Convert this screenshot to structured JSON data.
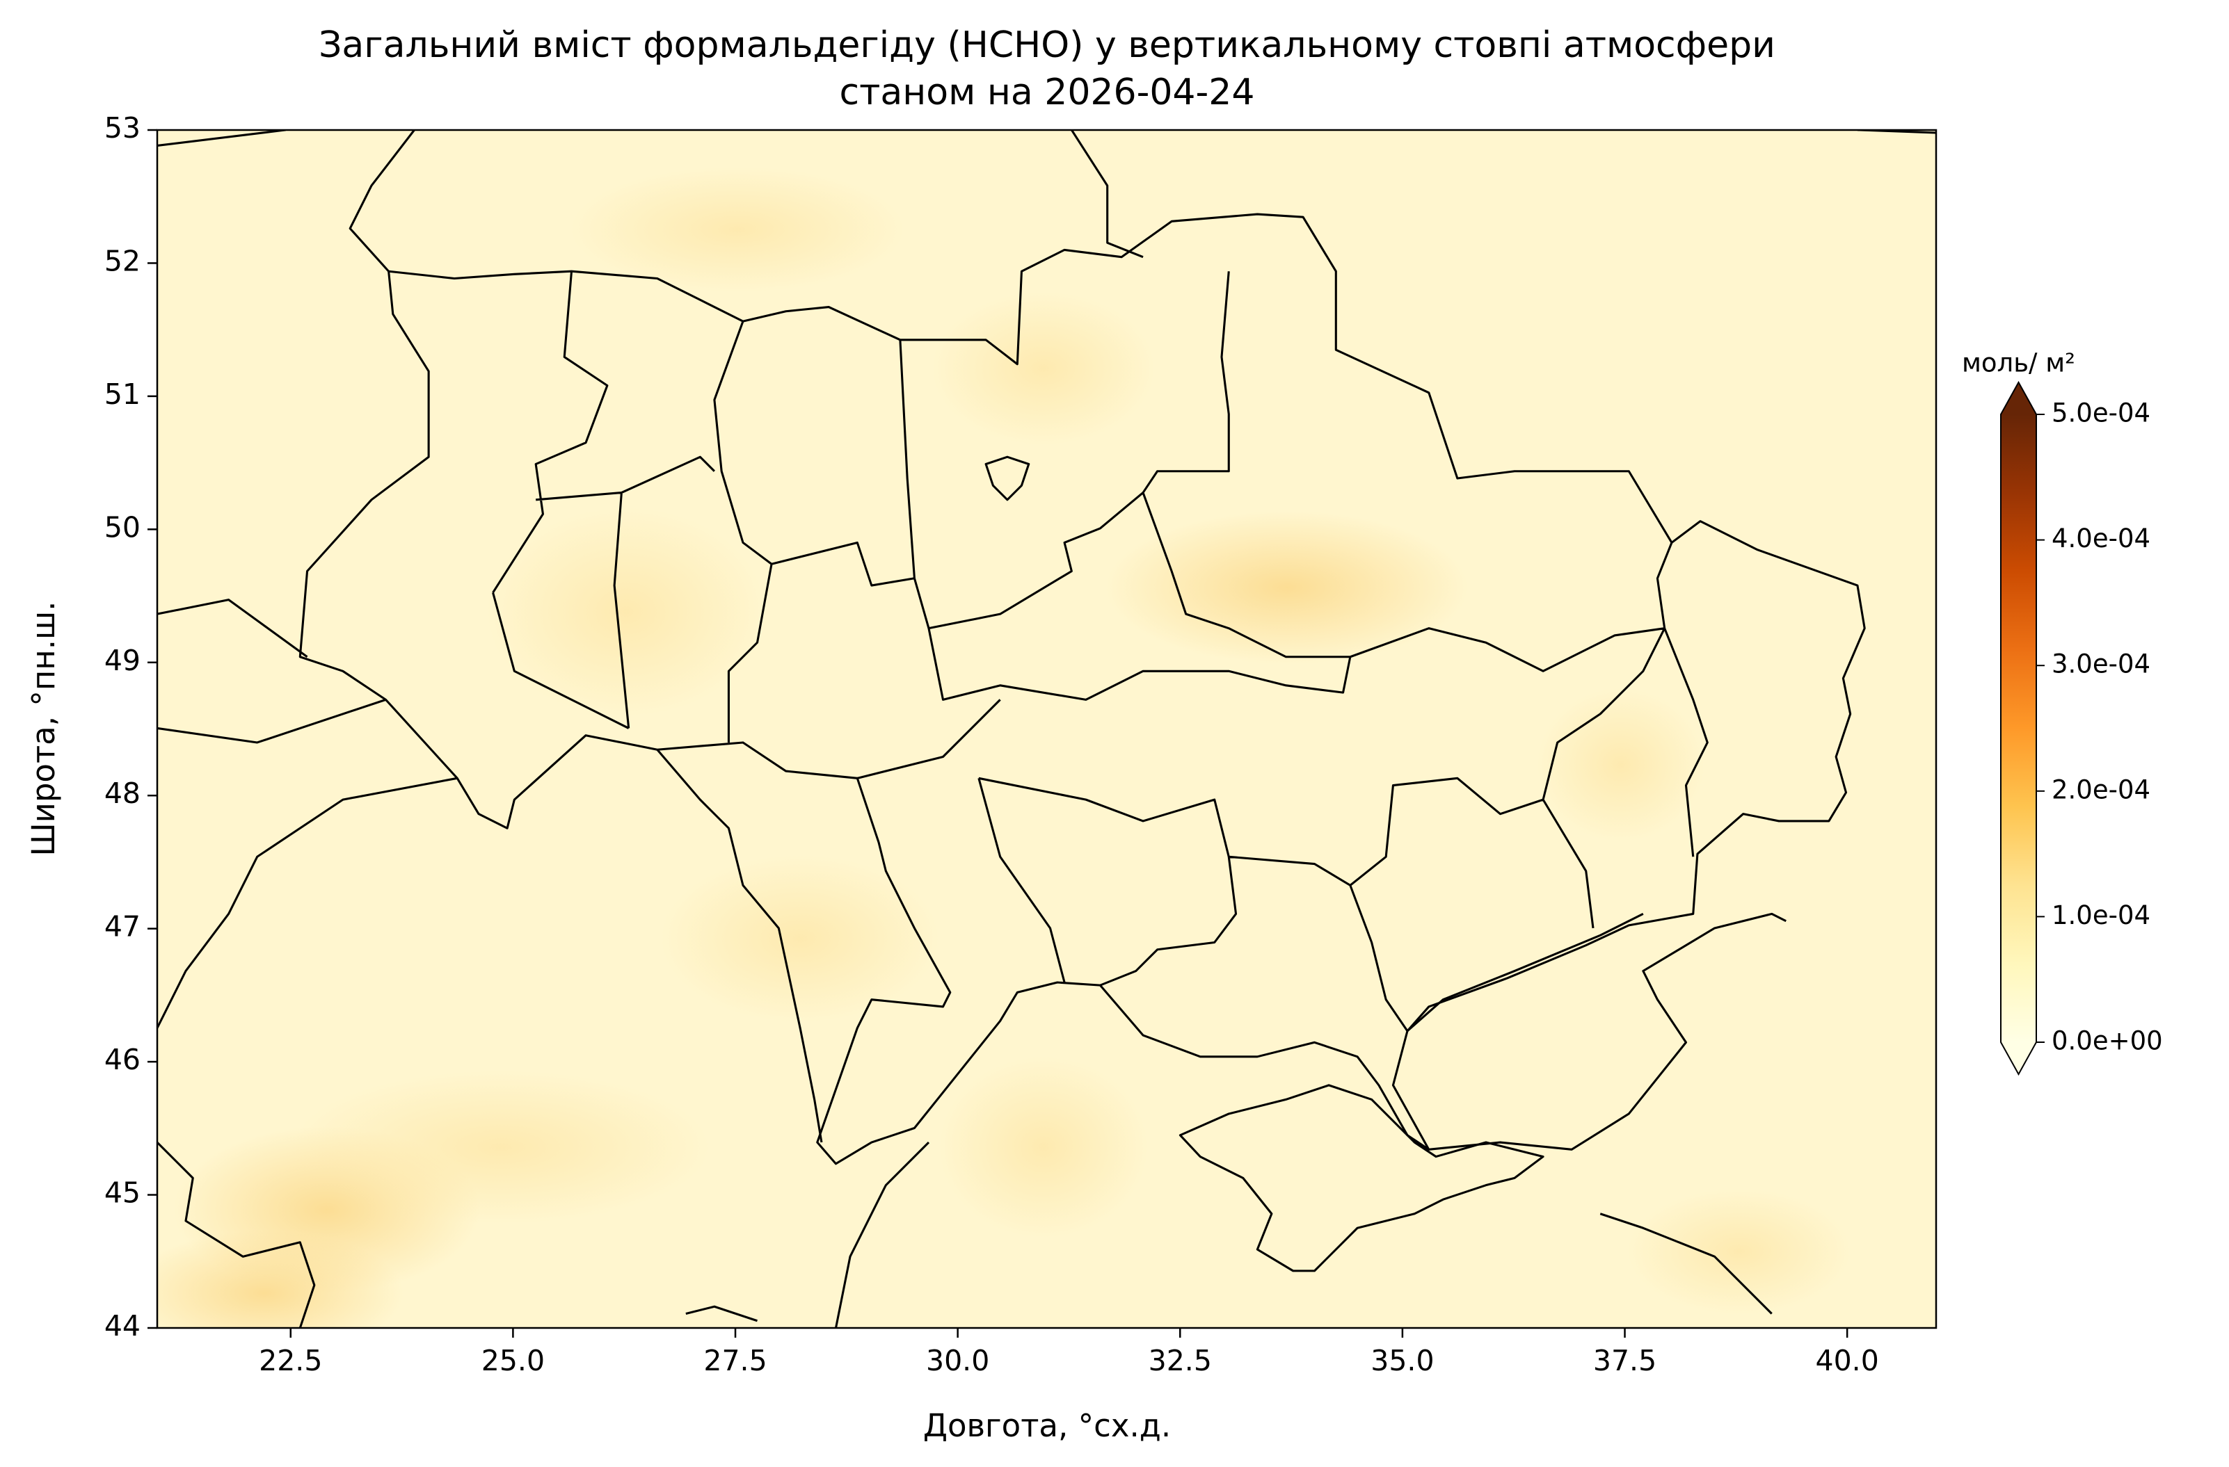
{
  "chart_data": {
    "type": "map",
    "title": "Загальний вміст формальдегіду (HCHO) у вертикальному стовпі атмосфери",
    "subtitle": "станом на 2026-04-24",
    "xlabel": "Довгота, °сх.д.",
    "ylabel": "Широта, °пн.ш.",
    "xlim": [
      21,
      41
    ],
    "ylim": [
      44,
      53
    ],
    "xticks": [
      22.5,
      {
        "value": 25,
        "label": "25.0"
      },
      27.5,
      {
        "value": 30,
        "label": "30.0"
      },
      32.5,
      {
        "value": 35,
        "label": "35.0"
      },
      37.5,
      {
        "value": 40,
        "label": "40.0"
      }
    ],
    "yticks": [
      44,
      45,
      46,
      47,
      48,
      49,
      50,
      51,
      52,
      53
    ],
    "colorbar": {
      "label": "моль/ м²",
      "lim": [
        0,
        0.0005
      ],
      "ticks": [
        {
          "value": 0,
          "label": "0.0e+00"
        },
        {
          "value": 0.0001,
          "label": "1.0e-04"
        },
        {
          "value": 0.0002,
          "label": "2.0e-04"
        },
        {
          "value": 0.0003,
          "label": "3.0e-04"
        },
        {
          "value": 0.0004,
          "label": "4.0e-04"
        },
        {
          "value": 0.0005,
          "label": "5.0e-04"
        }
      ],
      "colors": [
        "#ffffe5",
        "#fff7bc",
        "#fee391",
        "#fec44f",
        "#fe9929",
        "#ec7014",
        "#cc4c02",
        "#993404",
        "#662506"
      ],
      "extend": "both"
    }
  }
}
